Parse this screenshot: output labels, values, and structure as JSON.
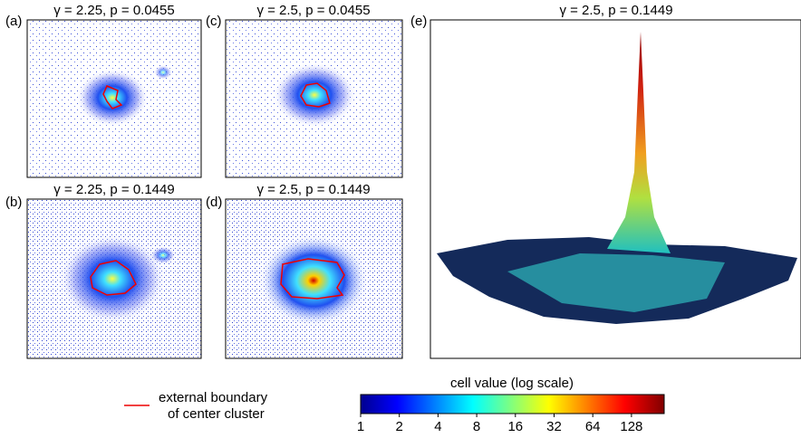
{
  "panels": [
    {
      "label": "(a)",
      "title": "γ = 2.25, p = 0.0455"
    },
    {
      "label": "(c)",
      "title": "γ = 2.5, p = 0.0455"
    },
    {
      "label": "(b)",
      "title": "γ = 2.25, p = 0.1449"
    },
    {
      "label": "(d)",
      "title": "γ = 2.5, p = 0.1449"
    },
    {
      "label": "(e)",
      "title": "γ = 2.5, p = 0.1449"
    }
  ],
  "legend": {
    "line1": "external boundary",
    "line2": "of center cluster"
  },
  "colorbar": {
    "title": "cell value (log scale)",
    "log_base": 2,
    "lim": [
      1,
      230
    ],
    "ticks": [
      1,
      2,
      4,
      8,
      16,
      32,
      64,
      128
    ]
  }
}
